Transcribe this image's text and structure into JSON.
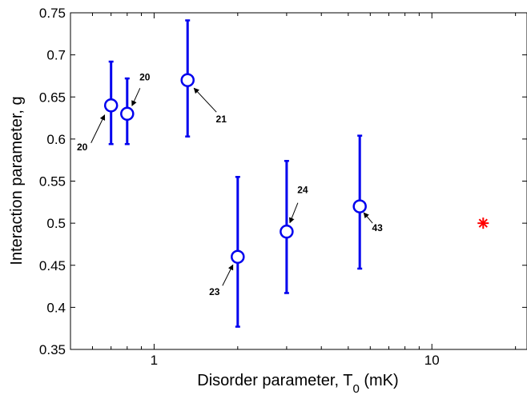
{
  "chart_data": {
    "type": "scatter",
    "title": "",
    "xlabel": "Disorder parameter, T",
    "xlabel_sub": "0",
    "xlabel_unit": " (mK)",
    "ylabel": "Interaction parameter, g",
    "xscale": "log",
    "xlim": [
      0.5,
      22
    ],
    "ylim": [
      0.35,
      0.75
    ],
    "grid": false,
    "legend": "none",
    "x_tick_values": [
      1,
      10
    ],
    "x_tick_labels": [
      "1",
      "10"
    ],
    "y_tick_values": [
      0.35,
      0.4,
      0.45,
      0.5,
      0.55,
      0.6,
      0.65,
      0.7,
      0.75
    ],
    "y_tick_labels": [
      "0.35",
      "0.4",
      "0.45",
      "0.5",
      "0.55",
      "0.6",
      "0.65",
      "0.7",
      "0.75"
    ],
    "series": [
      {
        "marker": "circle",
        "color": "#0000ee",
        "points": [
          {
            "x": 0.7,
            "y": 0.64,
            "ylow": 0.594,
            "yhigh": 0.692,
            "label": "20"
          },
          {
            "x": 0.8,
            "y": 0.63,
            "ylow": 0.594,
            "yhigh": 0.672,
            "label": "20"
          },
          {
            "x": 1.32,
            "y": 0.67,
            "ylow": 0.603,
            "yhigh": 0.741,
            "label": "21"
          },
          {
            "x": 2.0,
            "y": 0.46,
            "ylow": 0.377,
            "yhigh": 0.555,
            "label": "23"
          },
          {
            "x": 3.0,
            "y": 0.49,
            "ylow": 0.417,
            "yhigh": 0.574,
            "label": "24"
          },
          {
            "x": 5.5,
            "y": 0.52,
            "ylow": 0.446,
            "yhigh": 0.604,
            "label": "43"
          }
        ]
      },
      {
        "marker": "asterisk",
        "color": "#ff0000",
        "points": [
          {
            "x": 15.3,
            "y": 0.5
          }
        ]
      }
    ]
  }
}
